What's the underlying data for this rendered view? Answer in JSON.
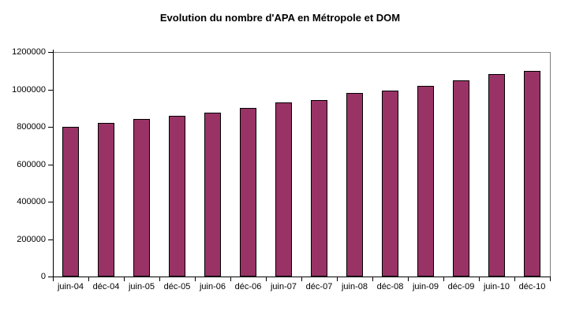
{
  "page": {
    "background_color": "#ffffff"
  },
  "chart_data": {
    "type": "bar",
    "title": "Evolution du nombre d'APA en Métropole et DOM",
    "xlabel": "",
    "ylabel": "",
    "categories": [
      "juin-04",
      "déc-04",
      "juin-05",
      "déc-05",
      "juin-06",
      "déc-06",
      "juin-07",
      "déc-07",
      "juin-08",
      "déc-08",
      "juin-09",
      "déc-09",
      "juin-10",
      "déc-10"
    ],
    "values": [
      800000,
      820000,
      840000,
      860000,
      875000,
      900000,
      930000,
      945000,
      980000,
      995000,
      1020000,
      1050000,
      1080000,
      1100000
    ],
    "ylim": [
      0,
      1200000
    ],
    "y_ticks": [
      0,
      200000,
      400000,
      600000,
      800000,
      1000000,
      1200000
    ],
    "y_tick_labels": [
      "0",
      "200000",
      "400000",
      "600000",
      "800000",
      "1000000",
      "1200000"
    ],
    "grid": "off",
    "legend": "none",
    "colors": {
      "bar_fill": "#993366",
      "bar_border": "#000000",
      "axis": "#000000",
      "plot_border": "#808080",
      "text": "#000000",
      "background": "#ffffff"
    }
  }
}
